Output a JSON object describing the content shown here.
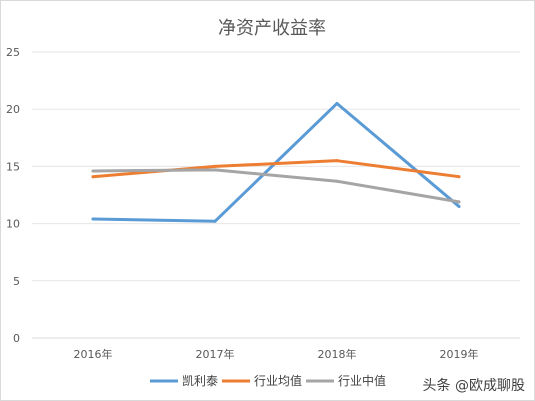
{
  "watermark": "头条 @欧成聊股",
  "chart_data": {
    "type": "line",
    "title": "净资产收益率",
    "categories": [
      "2016年",
      "2017年",
      "2018年",
      "2019年"
    ],
    "ylim": [
      0,
      25
    ],
    "yticks": [
      0,
      5,
      10,
      15,
      20,
      25
    ],
    "grid": true,
    "legend_position": "bottom",
    "series": [
      {
        "name": "凯利泰",
        "color": "#5b9bd5",
        "values": [
          10.4,
          10.2,
          20.5,
          11.5
        ]
      },
      {
        "name": "行业均值",
        "color": "#ed7d31",
        "values": [
          14.1,
          15.0,
          15.5,
          14.1
        ]
      },
      {
        "name": "行业中值",
        "color": "#a5a5a5",
        "values": [
          14.6,
          14.7,
          13.7,
          11.9
        ]
      }
    ]
  }
}
